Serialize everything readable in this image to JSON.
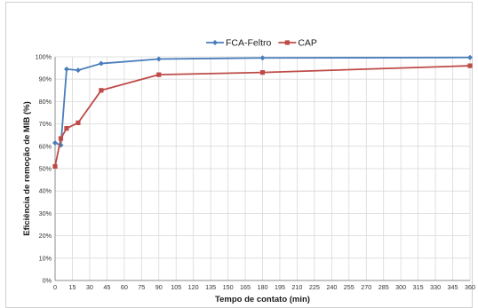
{
  "chart_data": {
    "type": "line",
    "xlabel": "Tempo de contato (min)",
    "ylabel": "Eficiência de remoção de MIB (%)",
    "xlim": [
      0,
      360
    ],
    "ylim": [
      0,
      100
    ],
    "x_ticks": [
      "0",
      "15",
      "30",
      "45",
      "60",
      "75",
      "90",
      "105",
      "120",
      "135",
      "150",
      "165",
      "180",
      "195",
      "210",
      "225",
      "240",
      "255",
      "270",
      "285",
      "300",
      "315",
      "330",
      "345",
      "360"
    ],
    "y_ticks": [
      "0%",
      "10%",
      "20%",
      "30%",
      "40%",
      "50%",
      "60%",
      "70%",
      "80%",
      "90%",
      "100%"
    ],
    "grid": true,
    "legend_position": "top-right",
    "series": [
      {
        "name": "FCA-Feltro",
        "color": "#4a7ebb",
        "marker": "diamond",
        "x": [
          0,
          5,
          10,
          20,
          40,
          90,
          180,
          360
        ],
        "y": [
          61.5,
          60.5,
          94.5,
          94,
          97,
          99,
          99.5,
          99.7
        ]
      },
      {
        "name": "CAP",
        "color": "#be4b48",
        "marker": "square",
        "x": [
          0,
          5,
          10,
          20,
          40,
          90,
          180,
          360
        ],
        "y": [
          51,
          63.5,
          68,
          70.5,
          85,
          92,
          93,
          96
        ]
      }
    ]
  }
}
